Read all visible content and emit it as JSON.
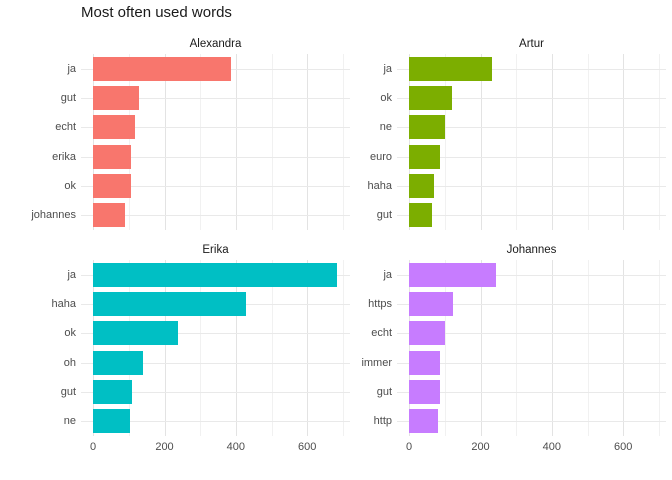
{
  "title": "Most often used words",
  "chart_data": {
    "type": "bar",
    "orientation": "horizontal",
    "title": "Most often used words",
    "xlabel": "",
    "ylabel": "",
    "xlim": [
      -34,
      720
    ],
    "x_major_ticks": [
      0,
      200,
      400,
      600
    ],
    "x_minor_gridlines": [
      100,
      300,
      500,
      700
    ],
    "grid": "on",
    "legend": "none",
    "palette": {
      "Alexandra": "#F8766D",
      "Artur": "#7CAE00",
      "Erika": "#00BFC4",
      "Johannes": "#C77CFF"
    },
    "facets": [
      {
        "name": "Alexandra",
        "color": "#F8766D",
        "categories": [
          "ja",
          "gut",
          "echt",
          "erika",
          "ok",
          "johannes"
        ],
        "values": [
          386,
          129,
          117,
          105,
          105,
          90
        ]
      },
      {
        "name": "Artur",
        "color": "#7CAE00",
        "categories": [
          "ja",
          "ok",
          "ne",
          "euro",
          "haha",
          "gut"
        ],
        "values": [
          232,
          120,
          100,
          88,
          70,
          63
        ]
      },
      {
        "name": "Erika",
        "color": "#00BFC4",
        "categories": [
          "ja",
          "haha",
          "ok",
          "oh",
          "gut",
          "ne"
        ],
        "values": [
          684,
          428,
          238,
          139,
          109,
          103
        ]
      },
      {
        "name": "Johannes",
        "color": "#C77CFF",
        "categories": [
          "ja",
          "https",
          "echt",
          "immer",
          "gut",
          "http"
        ],
        "values": [
          244,
          124,
          102,
          87,
          87,
          80
        ]
      }
    ]
  }
}
